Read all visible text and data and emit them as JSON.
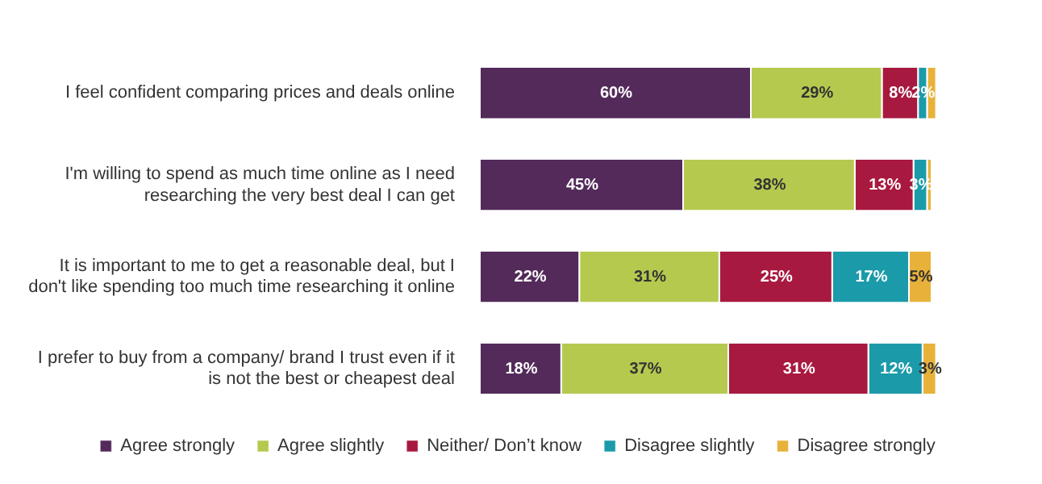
{
  "chart_data": {
    "type": "bar",
    "orientation": "horizontal",
    "stacked": true,
    "legend": "bottom",
    "tick_labels": "y",
    "categories": [
      "I feel confident comparing prices and deals online",
      "I'm willing to spend as much time online as I need researching the very best deal I can get",
      "It is important to me to get a reasonable deal, but I don't like spending too much time researching it online",
      "I prefer to buy from a company/ brand I trust even if it is not the best or cheapest deal"
    ],
    "series": [
      {
        "name": "Agree strongly",
        "color": "#532a5a",
        "values": [
          60,
          45,
          22,
          18
        ],
        "value_labels": [
          "60%",
          "45%",
          "22%",
          "18%"
        ]
      },
      {
        "name": "Agree slightly",
        "color": "#b5c94f",
        "values": [
          29,
          38,
          31,
          37
        ],
        "value_labels": [
          "29%",
          "38%",
          "31%",
          "37%"
        ]
      },
      {
        "name": "Neither/ Don’t know",
        "color": "#a8193f",
        "values": [
          8,
          13,
          25,
          31
        ],
        "value_labels": [
          "8%",
          "13%",
          "25%",
          "31%"
        ]
      },
      {
        "name": "Disagree slightly",
        "color": "#1b9aaa",
        "values": [
          2,
          3,
          17,
          12
        ],
        "value_labels": [
          "2%",
          "3%",
          "17%",
          "12%"
        ]
      },
      {
        "name": "Disagree strongly",
        "color": "#e8b23a",
        "values": [
          2,
          1,
          5,
          3
        ],
        "value_labels": [
          null,
          null,
          "5%",
          "3%"
        ]
      }
    ]
  }
}
